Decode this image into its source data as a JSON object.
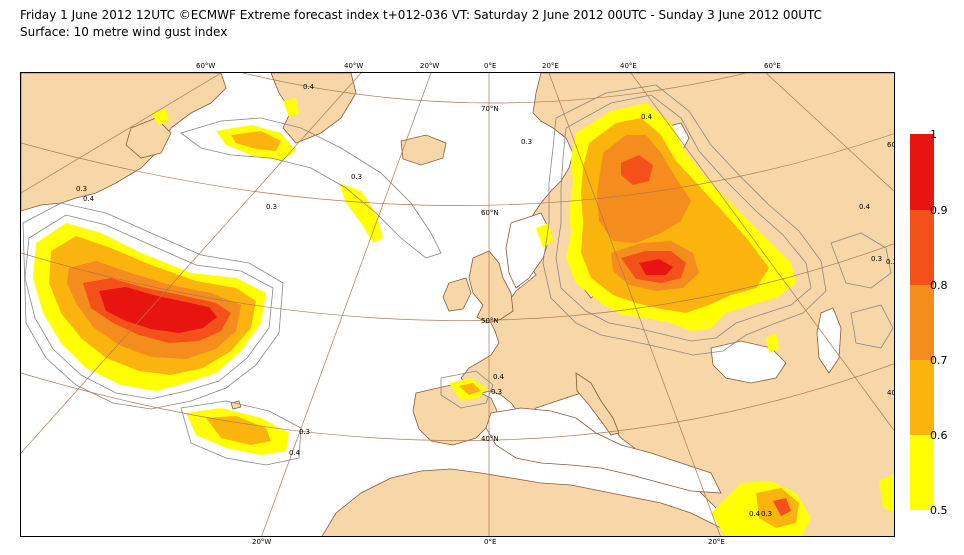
{
  "header": {
    "title_line1": "Friday 1 June 2012 12UTC ©ECMWF Extreme forecast index t+012-036 VT: Saturday 2 June 2012 00UTC - Sunday 3 June 2012 00UTC",
    "title_line2": "Surface: 10 metre wind gust index"
  },
  "map": {
    "projection_labels": {
      "top": [
        "60°W",
        "40°W",
        "20°W",
        "0°E",
        "20°E",
        "40°E",
        "60°E"
      ],
      "bottom": [
        "20°W",
        "0°E",
        "20°E"
      ],
      "left": [
        "N",
        "N"
      ],
      "right": [
        "60",
        "40"
      ],
      "parallels": [
        "70°N",
        "60°N",
        "50°N",
        "40°N"
      ]
    },
    "contour_labels": [
      "0.3",
      "0.3",
      "0.4",
      "0.3",
      "0.4",
      "0.3",
      "0.4",
      "0.3",
      "0.4",
      "0.3",
      "0.4",
      "0.3",
      "0.4",
      "0.3",
      "0.4",
      "0.3"
    ],
    "colors": {
      "land": "#f7d7a8",
      "sea": "#ffffff",
      "graticule": "#b07850",
      "coast": "#8a5a3a",
      "contour_line": "#888888"
    }
  },
  "legend": {
    "labels": [
      "1",
      "0.9",
      "0.8",
      "0.7",
      "0.6",
      "0.5"
    ],
    "bands": [
      {
        "from": 0.9,
        "to": 1.0,
        "color": "#e8140f"
      },
      {
        "from": 0.8,
        "to": 0.9,
        "color": "#f4501a"
      },
      {
        "from": 0.7,
        "to": 0.8,
        "color": "#f58c1e"
      },
      {
        "from": 0.6,
        "to": 0.7,
        "color": "#fbb40d"
      },
      {
        "from": 0.5,
        "to": 0.6,
        "color": "#ffff00"
      }
    ]
  }
}
